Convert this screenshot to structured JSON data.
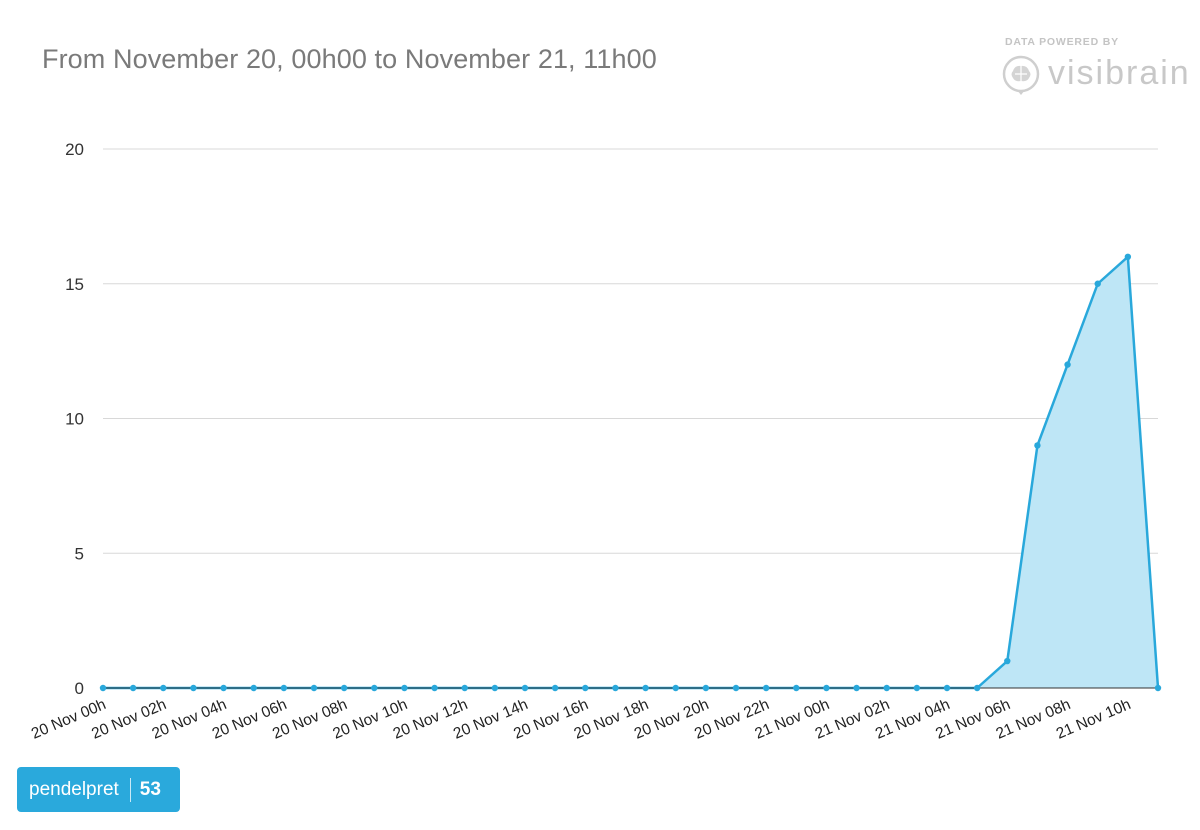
{
  "header": {
    "title": "From November 20, 00h00 to November 21, 11h00"
  },
  "branding": {
    "powered_by": "DATA POWERED BY",
    "name": "visibrain",
    "logo_icon": "brain-icon"
  },
  "badge": {
    "username": "pendelpret",
    "count": "53"
  },
  "colors": {
    "series_line": "#29a8db",
    "series_fill": "#bee6f6",
    "gridline": "#d8d8d8",
    "badge": "#2aa9dc"
  },
  "chart_data": {
    "type": "area",
    "title": "From November 20, 00h00 to November 21, 11h00",
    "xlabel": "",
    "ylabel": "",
    "ylim": [
      0,
      20
    ],
    "yticks": [
      0,
      5,
      10,
      15,
      20
    ],
    "grid": true,
    "legend": "none",
    "x": [
      "20 Nov 00h",
      "20 Nov 01h",
      "20 Nov 02h",
      "20 Nov 03h",
      "20 Nov 04h",
      "20 Nov 05h",
      "20 Nov 06h",
      "20 Nov 07h",
      "20 Nov 08h",
      "20 Nov 09h",
      "20 Nov 10h",
      "20 Nov 11h",
      "20 Nov 12h",
      "20 Nov 13h",
      "20 Nov 14h",
      "20 Nov 15h",
      "20 Nov 16h",
      "20 Nov 17h",
      "20 Nov 18h",
      "20 Nov 19h",
      "20 Nov 20h",
      "20 Nov 21h",
      "20 Nov 22h",
      "20 Nov 23h",
      "21 Nov 00h",
      "21 Nov 01h",
      "21 Nov 02h",
      "21 Nov 03h",
      "21 Nov 04h",
      "21 Nov 05h",
      "21 Nov 06h",
      "21 Nov 07h",
      "21 Nov 08h",
      "21 Nov 09h",
      "21 Nov 10h",
      "21 Nov 11h"
    ],
    "xtick_labels": [
      "20 Nov 00h",
      "20 Nov 02h",
      "20 Nov 04h",
      "20 Nov 06h",
      "20 Nov 08h",
      "20 Nov 10h",
      "20 Nov 12h",
      "20 Nov 14h",
      "20 Nov 16h",
      "20 Nov 18h",
      "20 Nov 20h",
      "20 Nov 22h",
      "21 Nov 00h",
      "21 Nov 02h",
      "21 Nov 04h",
      "21 Nov 06h",
      "21 Nov 08h",
      "21 Nov 10h"
    ],
    "series": [
      {
        "values": [
          0,
          0,
          0,
          0,
          0,
          0,
          0,
          0,
          0,
          0,
          0,
          0,
          0,
          0,
          0,
          0,
          0,
          0,
          0,
          0,
          0,
          0,
          0,
          0,
          0,
          0,
          0,
          0,
          0,
          0,
          1,
          9,
          12,
          15,
          16,
          0
        ]
      }
    ]
  }
}
